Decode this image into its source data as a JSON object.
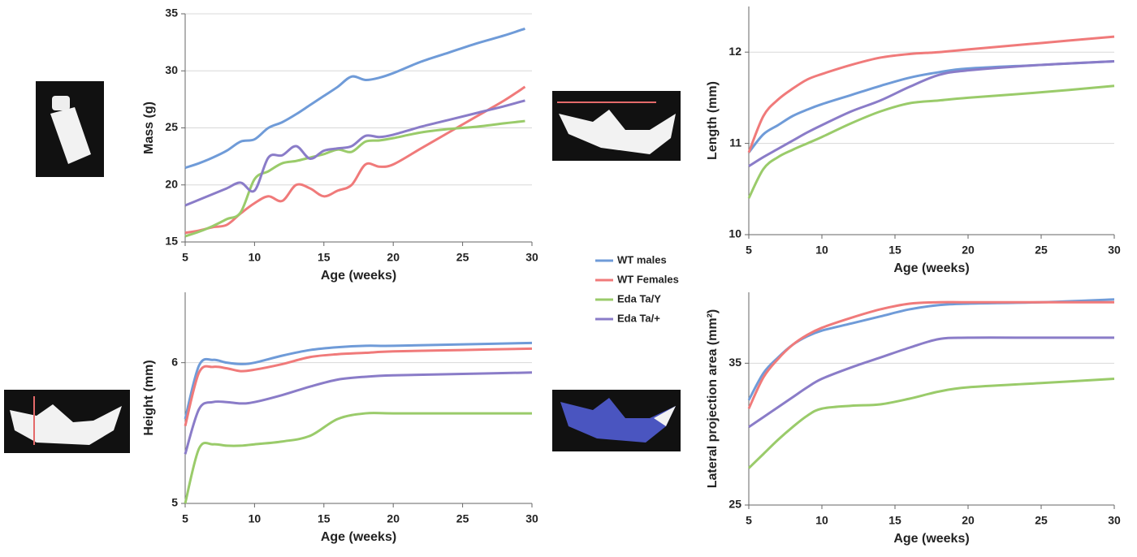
{
  "chart_data": [
    {
      "type": "line",
      "ylabel": "Mass (g)",
      "xlabel": "Age (weeks)",
      "x": [
        5,
        6,
        7,
        8,
        9,
        10,
        11,
        12,
        13,
        14,
        15,
        16,
        17,
        18,
        19,
        20,
        22,
        24,
        26,
        28,
        29.5
      ],
      "xlim": [
        5,
        30
      ],
      "xticks": [
        5,
        10,
        15,
        20,
        25,
        30
      ],
      "ylim": [
        15,
        35
      ],
      "yticks": [
        15,
        20,
        25,
        30,
        35
      ],
      "grid": true,
      "series": [
        {
          "name": "WT males",
          "color": "#6f9bd8",
          "values": [
            21.5,
            21.9,
            22.4,
            23.0,
            23.8,
            24.0,
            25.0,
            25.5,
            26.2,
            27.0,
            27.8,
            28.6,
            29.5,
            29.2,
            29.4,
            29.8,
            30.8,
            31.6,
            32.4,
            33.1,
            33.7
          ]
        },
        {
          "name": "WT Females",
          "color": "#f07a7a",
          "values": [
            15.8,
            16.0,
            16.3,
            16.5,
            17.5,
            18.4,
            19.0,
            18.6,
            20.0,
            19.7,
            19.0,
            19.5,
            20.0,
            21.8,
            21.6,
            21.8,
            23.2,
            24.6,
            26.0,
            27.4,
            28.6
          ]
        },
        {
          "name": "Eda Ta/Y",
          "color": "#9acb6a",
          "values": [
            15.5,
            15.9,
            16.4,
            17.0,
            17.6,
            20.5,
            21.2,
            21.9,
            22.1,
            22.4,
            22.7,
            23.1,
            22.9,
            23.8,
            23.9,
            24.1,
            24.6,
            24.9,
            25.1,
            25.4,
            25.6
          ]
        },
        {
          "name": "Eda Ta/+",
          "color": "#8a7cc8",
          "values": [
            18.2,
            18.7,
            19.2,
            19.7,
            20.2,
            19.5,
            22.4,
            22.6,
            23.4,
            22.3,
            23.0,
            23.2,
            23.4,
            24.3,
            24.2,
            24.4,
            25.1,
            25.7,
            26.3,
            26.9,
            27.4
          ]
        }
      ]
    },
    {
      "type": "line",
      "ylabel": "Length  (mm)",
      "xlabel": "Age (weeks)",
      "x": [
        5,
        6,
        7,
        8,
        9,
        10,
        12,
        14,
        16,
        18,
        20,
        25,
        30
      ],
      "xlim": [
        5,
        30
      ],
      "xticks": [
        5,
        10,
        15,
        20,
        25,
        30
      ],
      "ylim": [
        10,
        12.5
      ],
      "yticks": [
        10,
        11,
        12
      ],
      "grid": true,
      "series": [
        {
          "color": "#6f9bd8",
          "values": [
            10.9,
            11.1,
            11.2,
            11.3,
            11.37,
            11.43,
            11.53,
            11.63,
            11.72,
            11.78,
            11.82,
            11.86,
            11.9
          ]
        },
        {
          "color": "#f07a7a",
          "values": [
            10.9,
            11.3,
            11.48,
            11.6,
            11.7,
            11.76,
            11.86,
            11.94,
            11.98,
            12.0,
            12.03,
            12.1,
            12.17
          ]
        },
        {
          "color": "#9acb6a",
          "values": [
            10.4,
            10.72,
            10.85,
            10.93,
            11.0,
            11.07,
            11.22,
            11.35,
            11.44,
            11.47,
            11.5,
            11.56,
            11.63
          ]
        },
        {
          "color": "#8a7cc8",
          "values": [
            10.75,
            10.85,
            10.94,
            11.03,
            11.12,
            11.2,
            11.35,
            11.47,
            11.62,
            11.75,
            11.8,
            11.86,
            11.9
          ]
        }
      ]
    },
    {
      "type": "line",
      "ylabel": "Height (mm)",
      "xlabel": "Age (weeks)",
      "x": [
        5,
        6,
        7,
        8,
        9,
        10,
        12,
        14,
        16,
        18,
        20,
        25,
        30
      ],
      "xlim": [
        5,
        30
      ],
      "xticks": [
        5,
        10,
        15,
        20,
        25,
        30
      ],
      "ylim": [
        5,
        6.5
      ],
      "yticks": [
        5,
        6
      ],
      "grid": true,
      "series": [
        {
          "color": "#6f9bd8",
          "values": [
            5.6,
            5.98,
            6.02,
            6.0,
            5.99,
            6.0,
            6.05,
            6.09,
            6.11,
            6.12,
            6.12,
            6.13,
            6.14
          ]
        },
        {
          "color": "#f07a7a",
          "values": [
            5.55,
            5.93,
            5.97,
            5.96,
            5.94,
            5.95,
            5.99,
            6.04,
            6.06,
            6.07,
            6.08,
            6.09,
            6.1
          ]
        },
        {
          "color": "#9acb6a",
          "values": [
            5.0,
            5.39,
            5.42,
            5.41,
            5.41,
            5.42,
            5.44,
            5.48,
            5.6,
            5.64,
            5.64,
            5.64,
            5.64
          ]
        },
        {
          "color": "#8a7cc8",
          "values": [
            5.35,
            5.67,
            5.72,
            5.72,
            5.71,
            5.72,
            5.77,
            5.83,
            5.88,
            5.9,
            5.91,
            5.92,
            5.93
          ]
        }
      ]
    },
    {
      "type": "line",
      "ylabel": "Lateral projection area  (mm²)",
      "xlabel": "Age (weeks)",
      "x": [
        5,
        6,
        7,
        8,
        9,
        10,
        12,
        14,
        16,
        18,
        20,
        25,
        30
      ],
      "xlim": [
        5,
        30
      ],
      "xticks": [
        5,
        10,
        15,
        20,
        25,
        30
      ],
      "ylim": [
        25,
        40
      ],
      "yticks": [
        25,
        35
      ],
      "grid": true,
      "series": [
        {
          "color": "#6f9bd8",
          "values": [
            32.4,
            34.3,
            35.4,
            36.3,
            36.9,
            37.3,
            37.8,
            38.3,
            38.8,
            39.1,
            39.2,
            39.3,
            39.5
          ]
        },
        {
          "color": "#f07a7a",
          "values": [
            31.8,
            34.0,
            35.3,
            36.3,
            37.0,
            37.5,
            38.2,
            38.8,
            39.2,
            39.3,
            39.3,
            39.3,
            39.3
          ]
        },
        {
          "color": "#9acb6a",
          "values": [
            27.6,
            28.6,
            29.6,
            30.5,
            31.3,
            31.8,
            32.0,
            32.1,
            32.5,
            33.0,
            33.3,
            33.6,
            33.9
          ]
        },
        {
          "color": "#8a7cc8",
          "values": [
            30.5,
            31.2,
            31.9,
            32.6,
            33.3,
            33.9,
            34.7,
            35.4,
            36.1,
            36.7,
            36.8,
            36.8,
            36.8
          ]
        }
      ]
    }
  ]
}
